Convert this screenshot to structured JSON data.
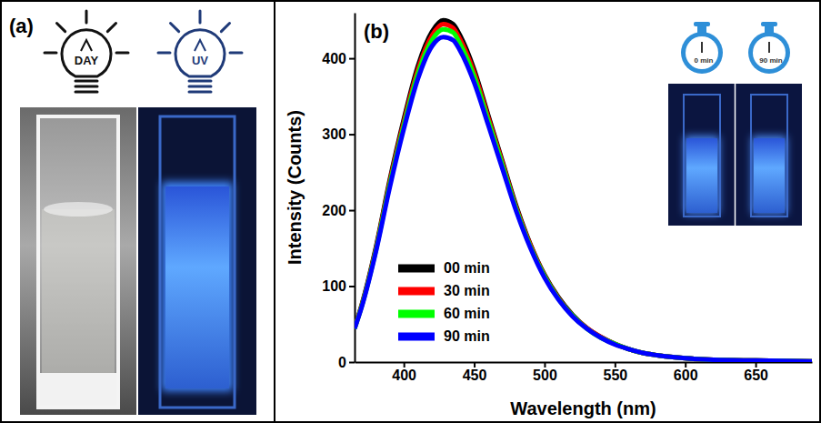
{
  "panel_a": {
    "label": "(a)",
    "lamp_labels": [
      "DAY",
      "UV"
    ]
  },
  "chart_data": {
    "type": "line",
    "label": "(b)",
    "x_label": "Wavelength (nm)",
    "y_label": "Intensity (Counts)",
    "annotations": [
      "0 min",
      "90 min"
    ],
    "x": [
      365,
      370,
      380,
      390,
      400,
      410,
      420,
      428,
      435,
      440,
      450,
      460,
      470,
      480,
      490,
      500,
      510,
      520,
      530,
      540,
      550,
      560,
      570,
      580,
      600,
      620,
      650,
      690
    ],
    "series": [
      {
        "name": "00 min",
        "color": "#000000",
        "values": [
          45,
          75,
          150,
          240,
          320,
          390,
          435,
          450,
          445,
          430,
          385,
          325,
          265,
          205,
          155,
          115,
          85,
          62,
          45,
          33,
          24,
          17,
          12,
          9,
          5,
          3,
          2,
          1
        ]
      },
      {
        "name": "30 min",
        "color": "#ff0000",
        "values": [
          45,
          74,
          148,
          237,
          316,
          385,
          430,
          445,
          440,
          425,
          381,
          322,
          263,
          203,
          154,
          114,
          84,
          61,
          45,
          33,
          24,
          17,
          12,
          9,
          5,
          3,
          2,
          1
        ]
      },
      {
        "name": "60 min",
        "color": "#00ff00",
        "values": [
          44,
          73,
          146,
          234,
          312,
          380,
          424,
          438,
          434,
          419,
          376,
          318,
          260,
          201,
          152,
          113,
          83,
          61,
          44,
          32,
          24,
          17,
          12,
          9,
          5,
          3,
          2,
          1
        ]
      },
      {
        "name": "90 min",
        "color": "#0000ff",
        "values": [
          44,
          72,
          144,
          230,
          307,
          373,
          416,
          428,
          424,
          410,
          368,
          312,
          255,
          198,
          150,
          111,
          82,
          60,
          44,
          32,
          23,
          17,
          12,
          9,
          5,
          3,
          2,
          1
        ]
      }
    ],
    "xlim": [
      365,
      690
    ],
    "xticks": [
      400,
      450,
      500,
      550,
      600,
      650
    ],
    "ylim": [
      0,
      460
    ],
    "yticks": [
      0,
      100,
      200,
      300,
      400
    ],
    "legend": "lower left",
    "grid": false
  }
}
